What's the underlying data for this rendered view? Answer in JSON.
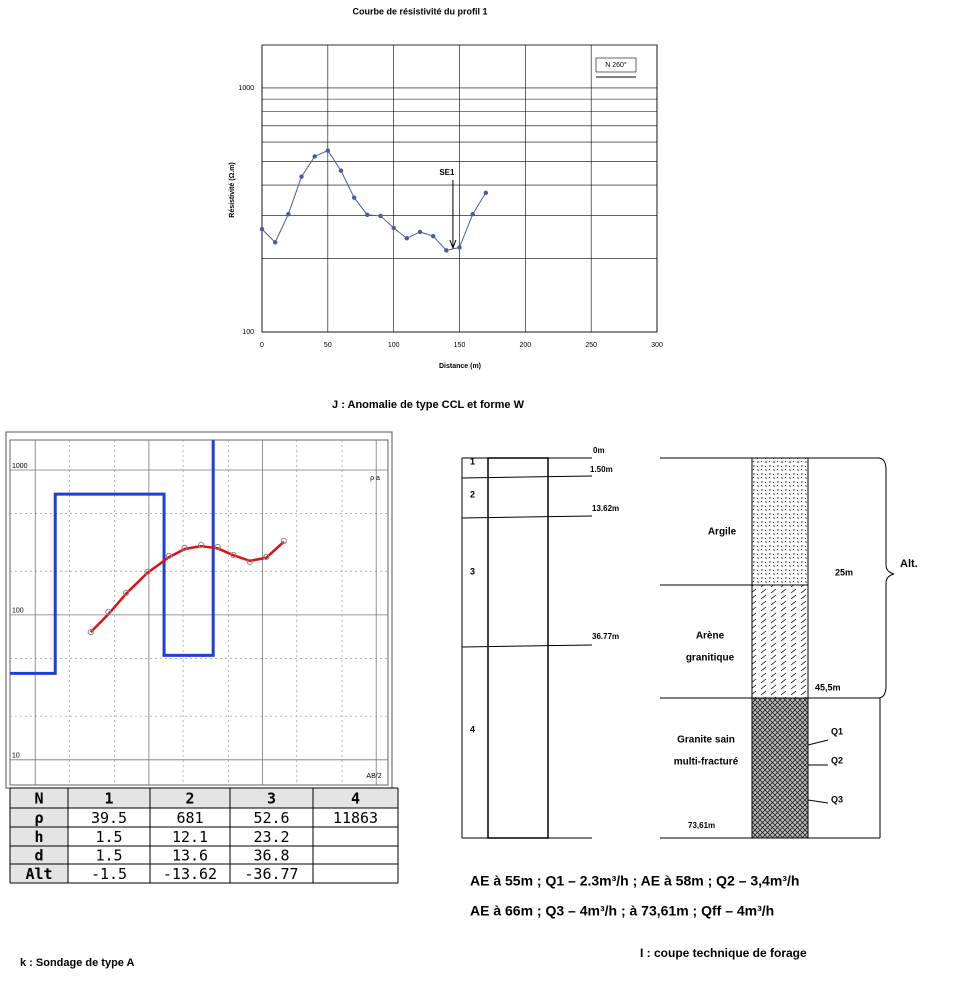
{
  "chart_data": [
    {
      "type": "line",
      "title": "Courbe de résistivité  du profil 1",
      "x_label": "Distance (m)",
      "y_label": "Résistivité (Ω.m)",
      "x": [
        0,
        10,
        20,
        30,
        40,
        50,
        60,
        70,
        80,
        90,
        100,
        110,
        120,
        130,
        140,
        150,
        160,
        170
      ],
      "series": [
        {
          "color": "#4a5aa8",
          "values": [
            264,
            233,
            304,
            433,
            524,
            554,
            458,
            355,
            302,
            299,
            267,
            242,
            257,
            247,
            216,
            222,
            304,
            372
          ]
        }
      ],
      "xlim": [
        0,
        300
      ],
      "xticks": [
        0,
        50,
        100,
        150,
        200,
        250,
        300
      ],
      "ylim": [
        100,
        1500
      ],
      "yticks": [
        100,
        1000
      ],
      "y_minor_ticks": [
        200,
        300,
        400,
        500,
        600,
        700,
        800,
        900
      ],
      "log_y": true,
      "grid": true,
      "annotation": {
        "text": "SE1",
        "x": 145
      },
      "legend_box": "N 260°",
      "caption": "J : Anomalie de type CCL et forme W"
    },
    {
      "type": "sounding",
      "x_label": "AB/2",
      "y_label": "ρ a",
      "xlim": [
        0.6,
        1270
      ],
      "xticks": [
        1,
        10,
        100,
        1000
      ],
      "x_minor_ticks": [
        2,
        5,
        20,
        50,
        200,
        500
      ],
      "ylim": [
        6.7,
        1610
      ],
      "yticks": [
        10,
        100,
        1000
      ],
      "y_minor_ticks": [
        20,
        50,
        200,
        500
      ],
      "log_x": true,
      "log_y": true,
      "grid": true,
      "observed": {
        "color": "#888888",
        "x": [
          3.08,
          4.4,
          6.3,
          9.7,
          15,
          20.6,
          28.8,
          40.3,
          55.3,
          77.3,
          108,
          154
        ],
        "values": [
          76,
          105,
          142,
          198,
          255,
          290,
          304,
          294,
          259,
          232,
          251,
          324
        ]
      },
      "fit": {
        "color": "#e01010",
        "x": [
          3.08,
          4.4,
          6.3,
          9.7,
          15,
          20.6,
          28.8,
          40.3,
          55.3,
          77.3,
          108,
          154
        ],
        "values": [
          76,
          101,
          140,
          195,
          250,
          285,
          298,
          288,
          258,
          236,
          248,
          320
        ]
      },
      "model_color": "#1f3fd8",
      "table": {
        "row_labels": [
          "N",
          "ρ",
          "h",
          "d",
          "Alt"
        ],
        "N": [
          1,
          2,
          3,
          4
        ],
        "rho": [
          39.5,
          681,
          52.6,
          11863
        ],
        "h": [
          1.5,
          12.1,
          23.2,
          null
        ],
        "d": [
          1.5,
          13.6,
          36.8,
          null
        ],
        "alt": [
          -1.5,
          -13.62,
          -36.77,
          null
        ]
      },
      "caption": "k : Sondage de type A"
    }
  ],
  "borehole": {
    "layers": [
      "1",
      "2",
      "3",
      "4"
    ],
    "depths": [
      "0m",
      "1.50m",
      "13.62m",
      "36.77m",
      "73,61m"
    ],
    "lithology": [
      [
        "Argile"
      ],
      [
        "Arène",
        "granitique"
      ],
      [
        "Granite sain",
        "multi-fracturé"
      ]
    ],
    "marks": [
      "25m",
      "45,5m"
    ],
    "flows": [
      "Q1",
      "Q2",
      "Q3"
    ],
    "alt": "Alt.",
    "notes": [
      "AE à 55m ; Q1 – 2.3m³/h ; AE à 58m ; Q2 – 3,4m³/h",
      "AE à 66m ; Q3 – 4m³/h ;  à  73,61m ; Qff – 4m³/h"
    ],
    "caption": "I : coupe technique de forage"
  }
}
